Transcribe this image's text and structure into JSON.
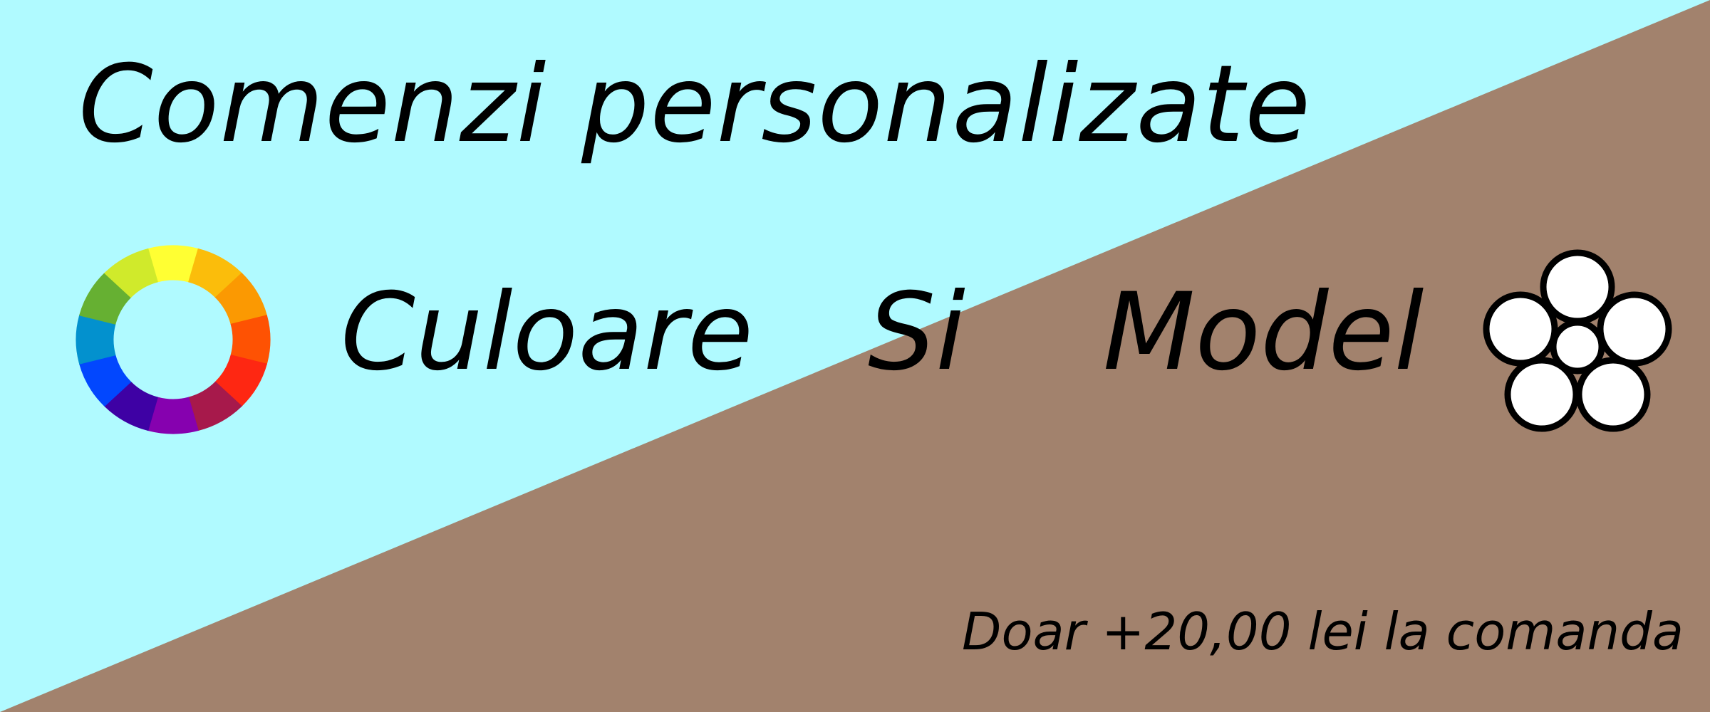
{
  "headline": "Comenzi personalizate",
  "features": {
    "word_color": "Culoare",
    "word_and": "Si",
    "word_model": "Model"
  },
  "price_note": "Doar +20,00 lei la comanda",
  "icons": {
    "left": "color-wheel-icon",
    "right": "flower-icon"
  },
  "colors": {
    "background_top": "#b0faff",
    "background_bottom": "#a2826d",
    "text": "#000000",
    "flower_fill": "#ffffff",
    "wheel_segments": [
      "#ffff33",
      "#fbbd0b",
      "#fb9902",
      "#fe5203",
      "#fe2712",
      "#a7194b",
      "#8601af",
      "#3e01a4",
      "#0247fe",
      "#0391ce",
      "#66b032",
      "#d0ea2b"
    ]
  }
}
